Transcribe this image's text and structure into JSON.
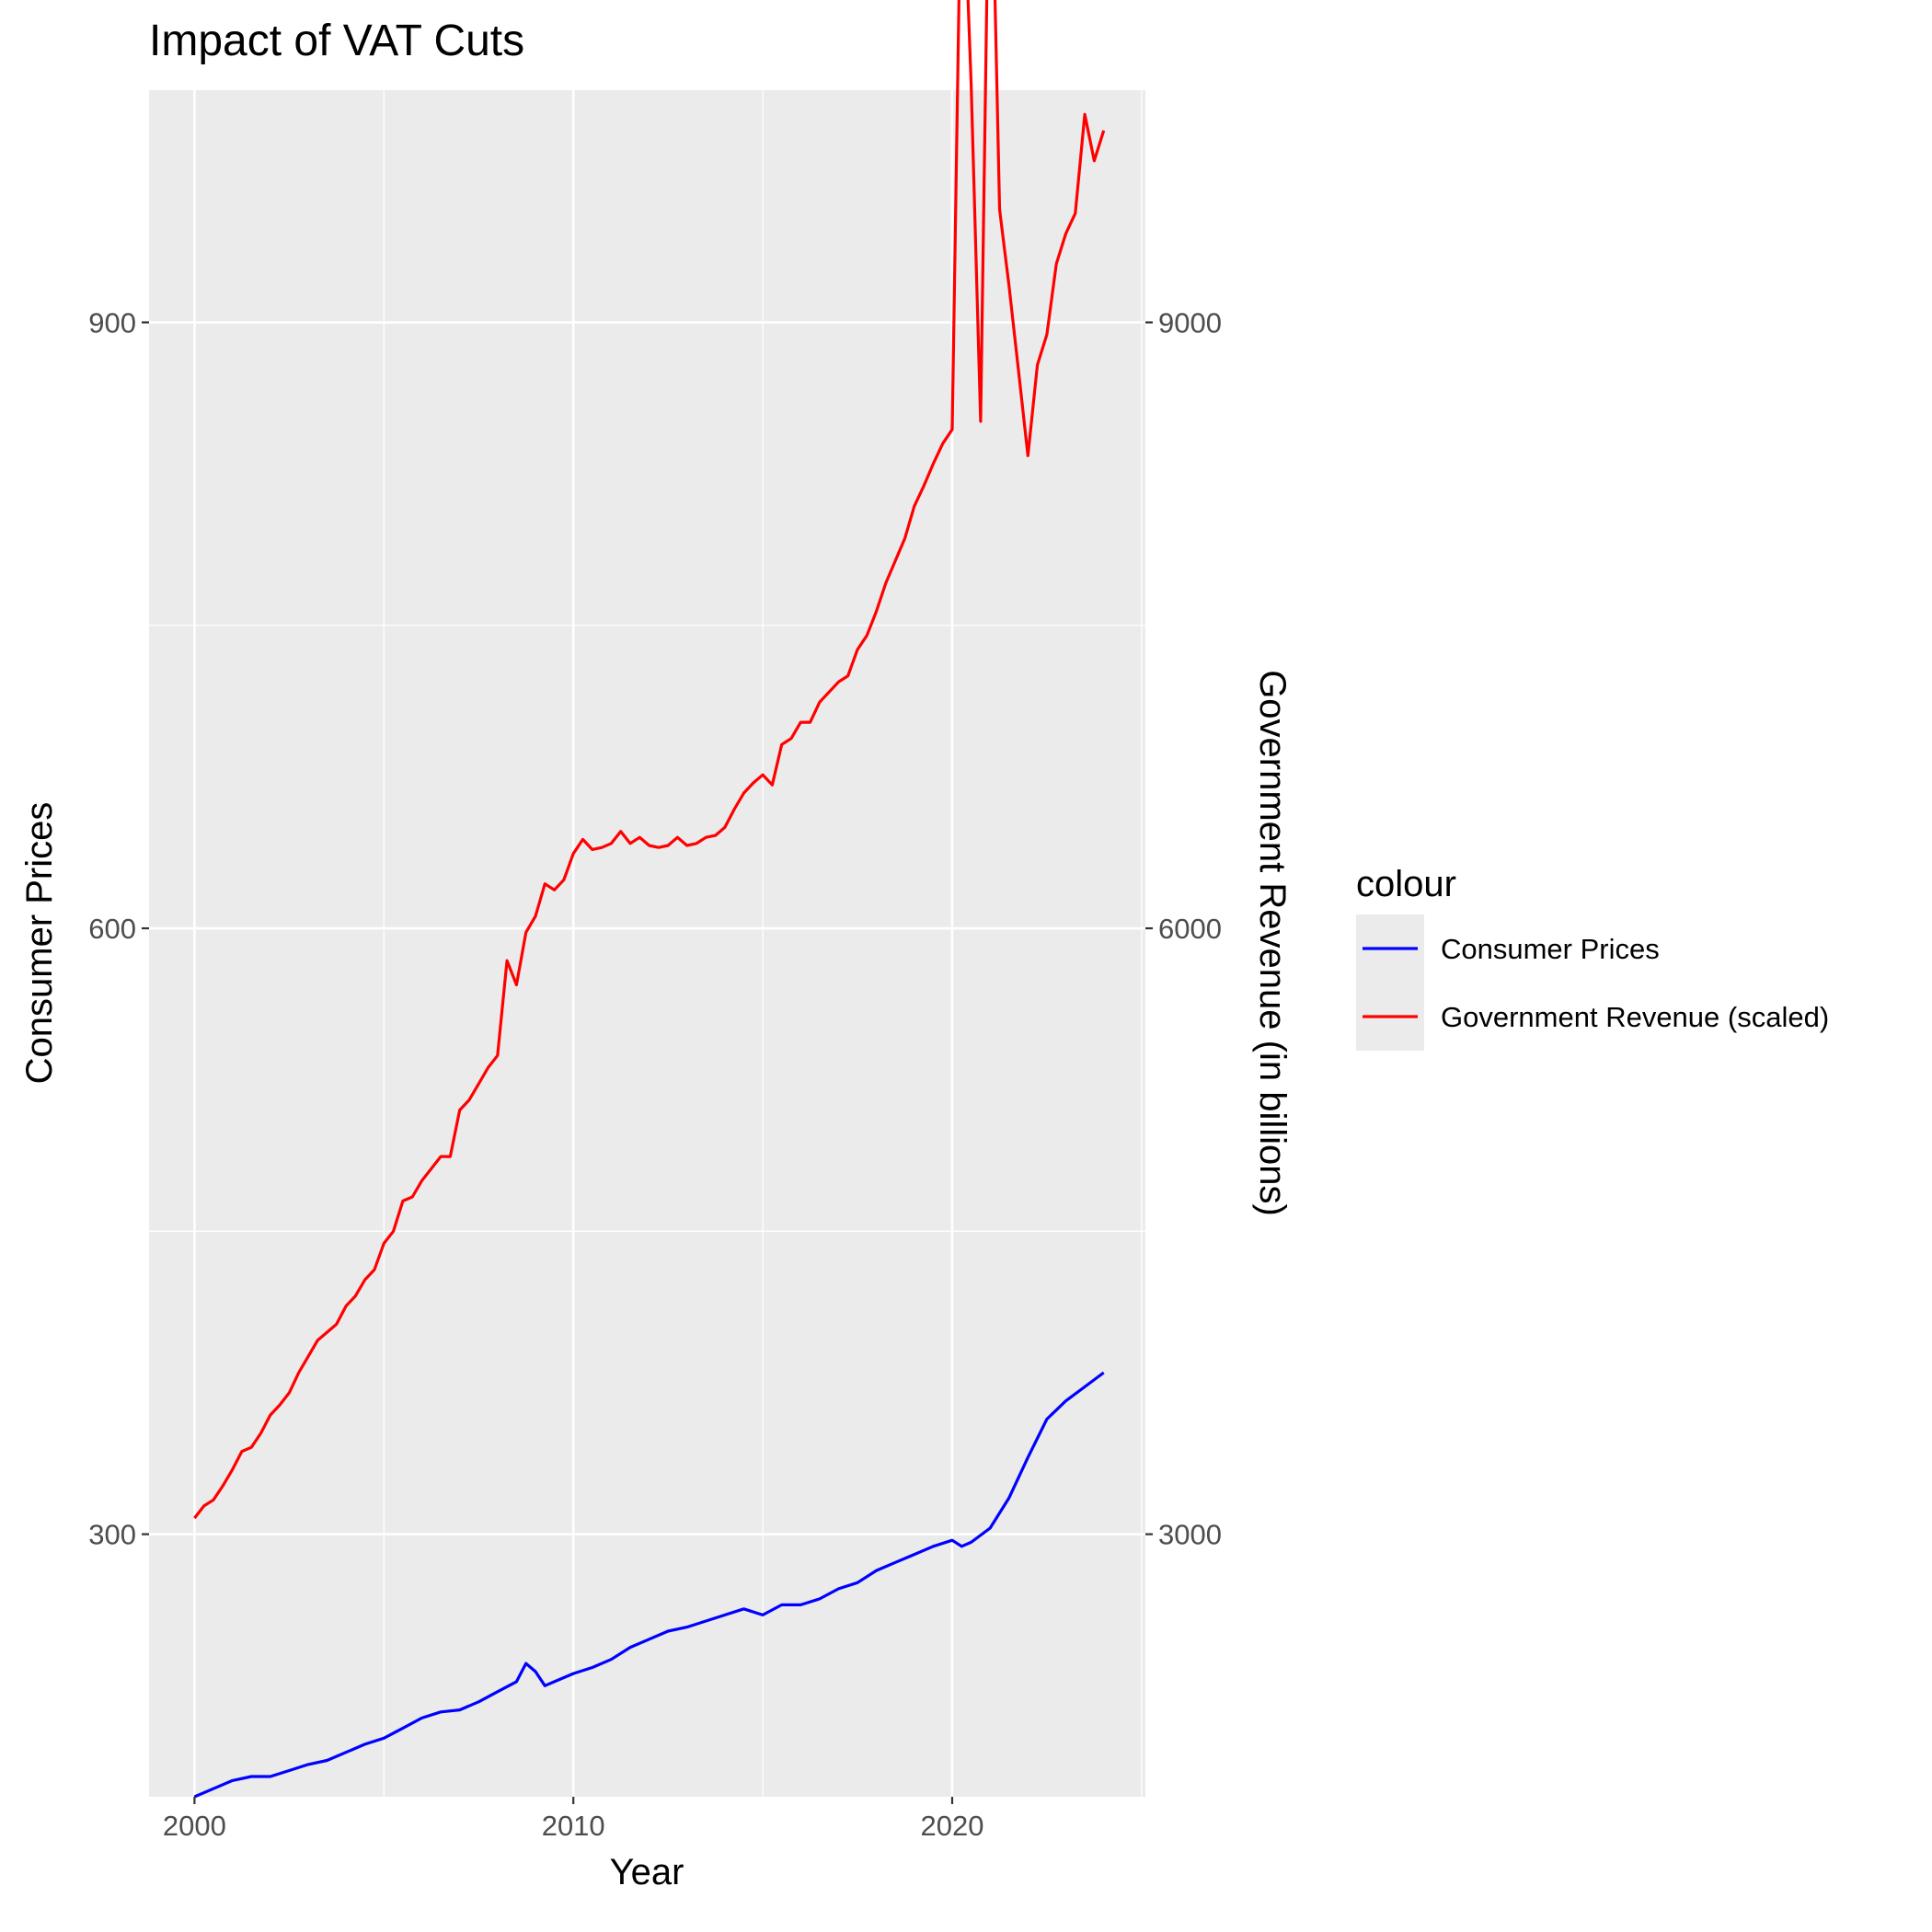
{
  "chart_data": {
    "type": "line",
    "title": "Impact of VAT Cuts",
    "xlabel": "Year",
    "ylabel": "Consumer Prices",
    "y2label": "Government Revenue (in billions)",
    "xlim": [
      1998.8,
      2025.1
    ],
    "ylim": [
      170,
      1015
    ],
    "y2lim": [
      1700,
      10150
    ],
    "x_ticks": [
      2000,
      2010,
      2020
    ],
    "y_ticks": [
      300,
      600,
      900
    ],
    "y2_ticks": [
      3000,
      6000,
      9000
    ],
    "grid": true,
    "legend": {
      "title": "colour",
      "position": "right",
      "entries": [
        "Consumer Prices",
        "Government Revenue (scaled)"
      ]
    },
    "series": [
      {
        "name": "Consumer Prices",
        "color": "#0000ff",
        "axis": "left",
        "x": [
          2000.0,
          2000.5,
          2001.0,
          2001.5,
          2002.0,
          2002.5,
          2003.0,
          2003.5,
          2004.0,
          2004.5,
          2005.0,
          2005.5,
          2006.0,
          2006.5,
          2007.0,
          2007.5,
          2008.0,
          2008.5,
          2008.75,
          2009.0,
          2009.25,
          2009.5,
          2010.0,
          2010.5,
          2011.0,
          2011.5,
          2012.0,
          2012.5,
          2013.0,
          2013.5,
          2014.0,
          2014.5,
          2015.0,
          2015.5,
          2016.0,
          2016.5,
          2017.0,
          2017.5,
          2018.0,
          2018.5,
          2019.0,
          2019.5,
          2020.0,
          2020.25,
          2020.5,
          2021.0,
          2021.5,
          2022.0,
          2022.5,
          2023.0,
          2023.5,
          2024.0
        ],
        "values": [
          170,
          174,
          178,
          180,
          180,
          183,
          186,
          188,
          192,
          196,
          199,
          204,
          209,
          212,
          213,
          217,
          222,
          227,
          236,
          232,
          225,
          227,
          231,
          234,
          238,
          244,
          248,
          252,
          254,
          257,
          260,
          263,
          260,
          265,
          265,
          268,
          273,
          276,
          282,
          286,
          290,
          294,
          297,
          294,
          296,
          303,
          318,
          338,
          357,
          366,
          373,
          380
        ]
      },
      {
        "name": "Government Revenue (scaled)",
        "color": "#ff0000",
        "axis": "right",
        "x": [
          2000.0,
          2000.25,
          2000.5,
          2000.75,
          2001.0,
          2001.25,
          2001.5,
          2001.75,
          2002.0,
          2002.25,
          2002.5,
          2002.75,
          2003.0,
          2003.25,
          2003.5,
          2003.75,
          2004.0,
          2004.25,
          2004.5,
          2004.75,
          2005.0,
          2005.25,
          2005.5,
          2005.75,
          2006.0,
          2006.25,
          2006.5,
          2006.75,
          2007.0,
          2007.25,
          2007.5,
          2007.75,
          2008.0,
          2008.25,
          2008.5,
          2008.75,
          2009.0,
          2009.25,
          2009.5,
          2009.75,
          2010.0,
          2010.25,
          2010.5,
          2010.75,
          2011.0,
          2011.25,
          2011.5,
          2011.75,
          2012.0,
          2012.25,
          2012.5,
          2012.75,
          2013.0,
          2013.25,
          2013.5,
          2013.75,
          2014.0,
          2014.25,
          2014.5,
          2014.75,
          2015.0,
          2015.25,
          2015.5,
          2015.75,
          2016.0,
          2016.25,
          2016.5,
          2016.75,
          2017.0,
          2017.25,
          2017.5,
          2017.75,
          2018.0,
          2018.25,
          2018.5,
          2018.75,
          2019.0,
          2019.25,
          2019.5,
          2019.75,
          2020.0,
          2020.25,
          2020.5,
          2020.75,
          2021.0,
          2021.25,
          2021.5,
          2021.75,
          2022.0,
          2022.25,
          2022.5,
          2022.75,
          2023.0,
          2023.25,
          2023.5,
          2023.75,
          2024.0
        ],
        "values": [
          3080,
          3140,
          3170,
          3240,
          3320,
          3410,
          3430,
          3500,
          3590,
          3640,
          3700,
          3800,
          3880,
          3960,
          4000,
          4040,
          4130,
          4180,
          4260,
          4310,
          4440,
          4500,
          4650,
          4670,
          4750,
          4810,
          4870,
          4870,
          5100,
          5150,
          5230,
          5310,
          5370,
          5840,
          5720,
          5980,
          6060,
          6220,
          6190,
          6240,
          6370,
          6440,
          6390,
          6400,
          6420,
          6480,
          6420,
          6450,
          6410,
          6400,
          6410,
          6450,
          6410,
          6420,
          6450,
          6460,
          6500,
          6590,
          6670,
          6720,
          6760,
          6710,
          6910,
          6940,
          7020,
          7020,
          7120,
          7170,
          7220,
          7250,
          7380,
          7450,
          7570,
          7710,
          7820,
          7930,
          8090,
          8190,
          8300,
          8400,
          8470,
          11450,
          10180,
          8510,
          11720,
          9560,
          9180,
          8760,
          8340,
          8790,
          8940,
          9290,
          9440,
          9540,
          10030,
          9800,
          9950
        ]
      }
    ]
  }
}
